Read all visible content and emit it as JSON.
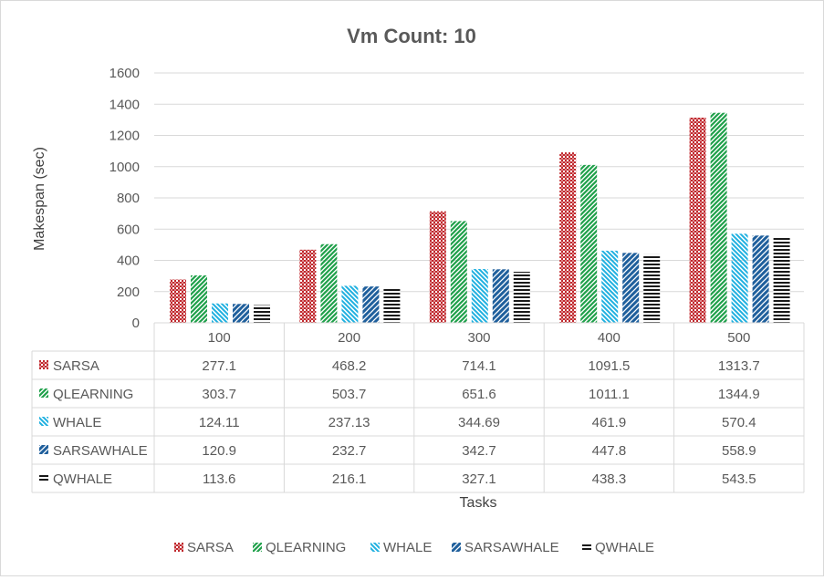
{
  "chart_data": {
    "type": "bar",
    "title": "Vm Count: 10",
    "xlabel": "Tasks",
    "ylabel": "Makespan (sec)",
    "ylim": [
      0,
      1600
    ],
    "yticks": [
      0,
      200,
      400,
      600,
      800,
      1000,
      1200,
      1400,
      1600
    ],
    "grid": true,
    "legend_position": "bottom",
    "categories": [
      "100",
      "200",
      "300",
      "400",
      "500"
    ],
    "series": [
      {
        "name": "SARSA",
        "color": "#c0282d",
        "pattern": "checker",
        "values": [
          277.1,
          468.2,
          714.1,
          1091.5,
          1313.7
        ],
        "labels": [
          "277.1",
          "468.2",
          "714.1",
          "1091.5",
          "1313.7"
        ]
      },
      {
        "name": "QLEARNING",
        "color": "#1fa04a",
        "pattern": "diag-up",
        "values": [
          303.7,
          503.7,
          651.6,
          1011.1,
          1344.9
        ],
        "labels": [
          "303.7",
          "503.7",
          "651.6",
          "1011.1",
          "1344.9"
        ]
      },
      {
        "name": "WHALE",
        "color": "#1fb0e0",
        "pattern": "diag-down",
        "values": [
          124.11,
          237.13,
          344.69,
          461.9,
          570.4
        ],
        "labels": [
          "124.11",
          "237.13",
          "344.69",
          "461.9",
          "570.4"
        ]
      },
      {
        "name": "SARSAWHALE",
        "color": "#1f5f9c",
        "pattern": "diag-up-wide",
        "values": [
          120.9,
          232.7,
          342.7,
          447.8,
          558.9
        ],
        "labels": [
          "120.9",
          "232.7",
          "342.7",
          "447.8",
          "558.9"
        ]
      },
      {
        "name": "QWHALE",
        "color": "#1a1a1a",
        "pattern": "horizontal",
        "values": [
          113.6,
          216.1,
          327.1,
          438.3,
          543.5
        ],
        "labels": [
          "113.6",
          "216.1",
          "327.1",
          "438.3",
          "543.5"
        ]
      }
    ]
  }
}
